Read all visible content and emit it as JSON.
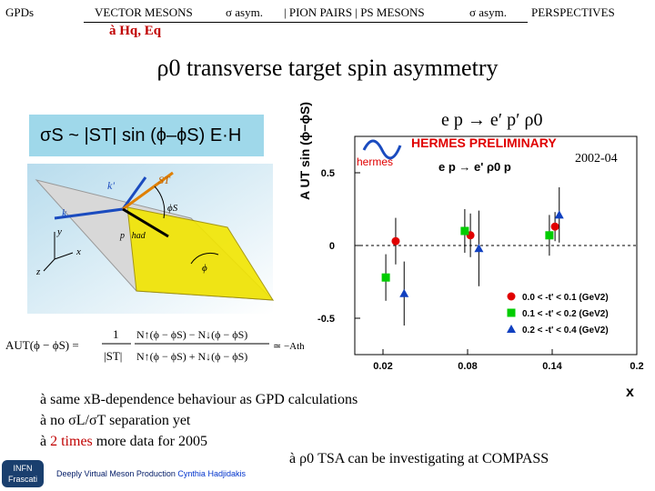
{
  "nav": {
    "gpds": "GPDs",
    "vector_mesons": "VECTOR MESONS",
    "sigma_asym": "σ asym.",
    "pion_pairs": "| PION PAIRS | PS MESONS",
    "sigma_asym2": "σ asym.",
    "perspectives": "PERSPECTIVES"
  },
  "subtitle": "à Hq, Eq",
  "title": "ρ0 transverse target spin asymmetry",
  "formula_box": "σS ~ |ST| sin (ϕ–ϕS) E·H",
  "figure_labels": {
    "k_prime": "k'",
    "s_t": "ST",
    "k": "k",
    "p_had": "p⃗had",
    "phi_s": "ϕS",
    "phi": "ϕ",
    "x": "x",
    "y": "y",
    "z": "z"
  },
  "equation": {
    "lhs": "AUT(ϕ − ϕS) =",
    "frac1": "1",
    "frac1_den": "|ST|",
    "num": "N↑(ϕ − ϕS) − N↓(ϕ − ϕS)",
    "den": "N↑(ϕ − ϕS) + N↓(ϕ − ϕS)",
    "rhs": "≃ −Atheory"
  },
  "chart_data": {
    "type": "scatter",
    "title": "HERMES PRELIMINARY",
    "logo": "hermes",
    "reaction": "e p → e' ρ0 p",
    "reaction_top": "e p → e′ p′ ρ0",
    "year": "2002-04",
    "ylabel": "A UT sin (ϕ−ϕS)",
    "xlabel": "x",
    "xlim": [
      0.0,
      0.2
    ],
    "ylim": [
      -0.75,
      0.75
    ],
    "xticks": [
      "0.02",
      "0.08",
      "0.14",
      "0.2"
    ],
    "yticks": [
      "0.5",
      "0",
      "-0.5"
    ],
    "series": [
      {
        "name": "0.0 < -t' < 0.1 (GeV2)",
        "color": "#e00000",
        "marker": "circle",
        "points": [
          {
            "x": 0.029,
            "y": 0.03,
            "err": 0.16
          },
          {
            "x": 0.082,
            "y": 0.07,
            "err": 0.15
          },
          {
            "x": 0.142,
            "y": 0.13,
            "err": 0.1
          }
        ]
      },
      {
        "name": "0.1 < -t' < 0.2 (GeV2)",
        "color": "#00cc00",
        "marker": "square",
        "points": [
          {
            "x": 0.022,
            "y": -0.22,
            "err": 0.16
          },
          {
            "x": 0.078,
            "y": 0.1,
            "err": 0.15
          },
          {
            "x": 0.138,
            "y": 0.07,
            "err": 0.14
          }
        ]
      },
      {
        "name": "0.2 < -t' < 0.4 (GeV2)",
        "color": "#1040c0",
        "marker": "triangle",
        "points": [
          {
            "x": 0.035,
            "y": -0.33,
            "err": 0.22
          },
          {
            "x": 0.088,
            "y": -0.02,
            "err": 0.26
          },
          {
            "x": 0.145,
            "y": 0.21,
            "err": 0.19
          }
        ]
      }
    ]
  },
  "bullets": [
    {
      "arrow": "à",
      "text": "same xB-dependence behaviour as GPD calculations"
    },
    {
      "arrow": "à",
      "text": "no σL/σT separation yet"
    },
    {
      "arrow": "à",
      "red": "2 times",
      "text": "more data for 2005"
    }
  ],
  "bottom_note": "à ρ0 TSA can be investigating at COMPASS",
  "footer": {
    "text": "Deeply Virtual Meson Production",
    "name": "Cynthia Hadjidakis"
  },
  "logo_text": "INFN Frascati",
  "colors": {
    "box": "#9fd8ea",
    "accent_red": "#c00000",
    "hermes_red": "#e00000"
  }
}
